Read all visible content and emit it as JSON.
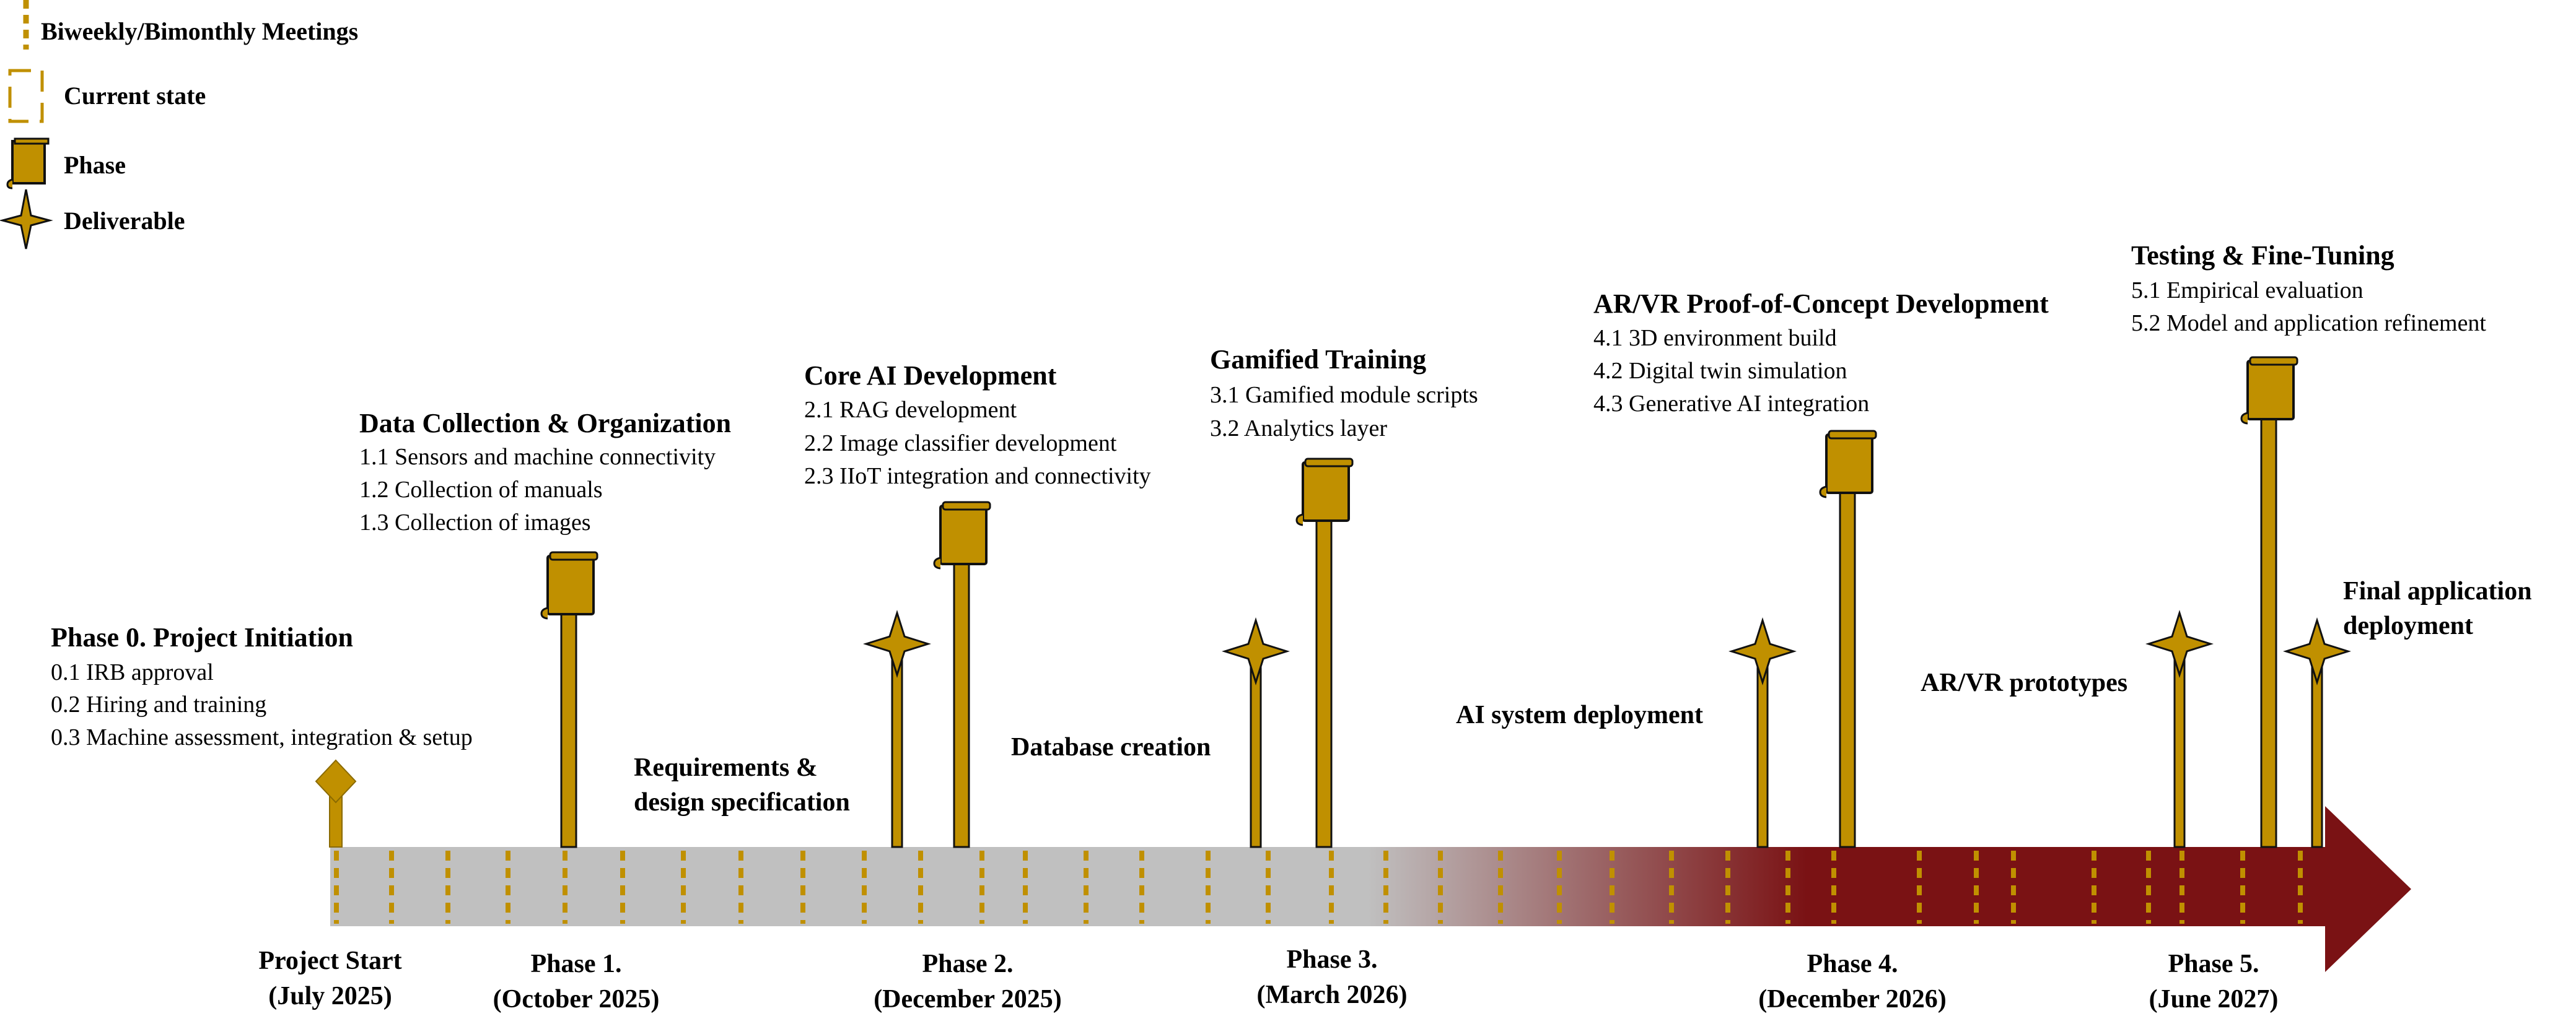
{
  "colors": {
    "gold": "#C09000",
    "gold_dark": "#8A6A00",
    "line": "#111111",
    "gray": "#C0C0C0",
    "maroon": "#7A1214",
    "white": "#ffffff"
  },
  "legend": {
    "meetings": "Biweekly/Bimonthly Meetings",
    "current": "Current state",
    "phase": "Phase",
    "deliverable": "Deliverable"
  },
  "phases": [
    {
      "id": "p0",
      "title": "Phase 0. Project Initiation",
      "items": [
        "0.1 IRB approval",
        "0.2 Hiring and training",
        "0.3 Machine assessment, integration & setup"
      ]
    },
    {
      "id": "p1",
      "title": "Data Collection & Organization",
      "items": [
        "1.1 Sensors and machine connectivity",
        "1.2 Collection of manuals",
        "1.3 Collection of images"
      ]
    },
    {
      "id": "p2",
      "title": "Core AI Development",
      "items": [
        "2.1 RAG development",
        "2.2 Image classifier development",
        "2.3 IIoT integration and connectivity"
      ]
    },
    {
      "id": "p3",
      "title": "Gamified Training",
      "items": [
        "3.1 Gamified module scripts",
        "3.2 Analytics layer"
      ]
    },
    {
      "id": "p4",
      "title": "AR/VR Proof-of-Concept Development",
      "items": [
        "4.1 3D environment build",
        "4.2 Digital twin simulation",
        "4.3 Generative AI integration"
      ]
    },
    {
      "id": "p5",
      "title": "Testing & Fine-Tuning",
      "items": [
        "5.1 Empirical evaluation",
        "5.2 Model and application refinement"
      ]
    }
  ],
  "deliverables": [
    {
      "id": "d1",
      "lines": [
        "Requirements &",
        "design specification"
      ]
    },
    {
      "id": "d2",
      "lines": [
        "Database creation"
      ]
    },
    {
      "id": "d3",
      "lines": [
        "AI system deployment"
      ]
    },
    {
      "id": "d4",
      "lines": [
        "AR/VR prototypes"
      ]
    },
    {
      "id": "d5",
      "lines": [
        "Final application",
        "deployment"
      ]
    }
  ],
  "milestones": [
    {
      "id": "m0",
      "lines": [
        "Project Start",
        "(July 2025)"
      ]
    },
    {
      "id": "m1",
      "lines": [
        "Phase 1.",
        "(October 2025)"
      ]
    },
    {
      "id": "m2",
      "lines": [
        "Phase 2.",
        "(December 2025)"
      ]
    },
    {
      "id": "m3",
      "lines": [
        "Phase 3.",
        "(March 2026)"
      ]
    },
    {
      "id": "m4",
      "lines": [
        "Phase 4.",
        "(December 2026)"
      ]
    },
    {
      "id": "m5",
      "lines": [
        "Phase 5.",
        "(June 2027)"
      ]
    }
  ]
}
